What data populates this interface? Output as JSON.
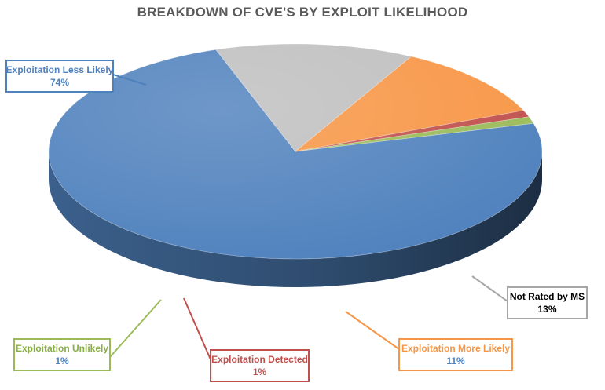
{
  "chart_data": {
    "type": "pie",
    "title": "BREAKDOWN OF CVE'S BY EXPLOIT LIKELIHOOD",
    "style": "3d-pie",
    "slices": [
      {
        "label": "Exploitation Less Likely",
        "value": 74,
        "display": "74%",
        "color": "#4f81bd"
      },
      {
        "label": "Not Rated by MS",
        "value": 13,
        "display": "13%",
        "color": "#bfbfbf"
      },
      {
        "label": "Exploitation More Likely",
        "value": 11,
        "display": "11%",
        "color": "#f79646"
      },
      {
        "label": "Exploitation Detected",
        "value": 1,
        "display": "1%",
        "color": "#c0504d"
      },
      {
        "label": "Exploitation Unlikely",
        "value": 1,
        "display": "1%",
        "color": "#9bbb59"
      }
    ],
    "legend": "none"
  }
}
